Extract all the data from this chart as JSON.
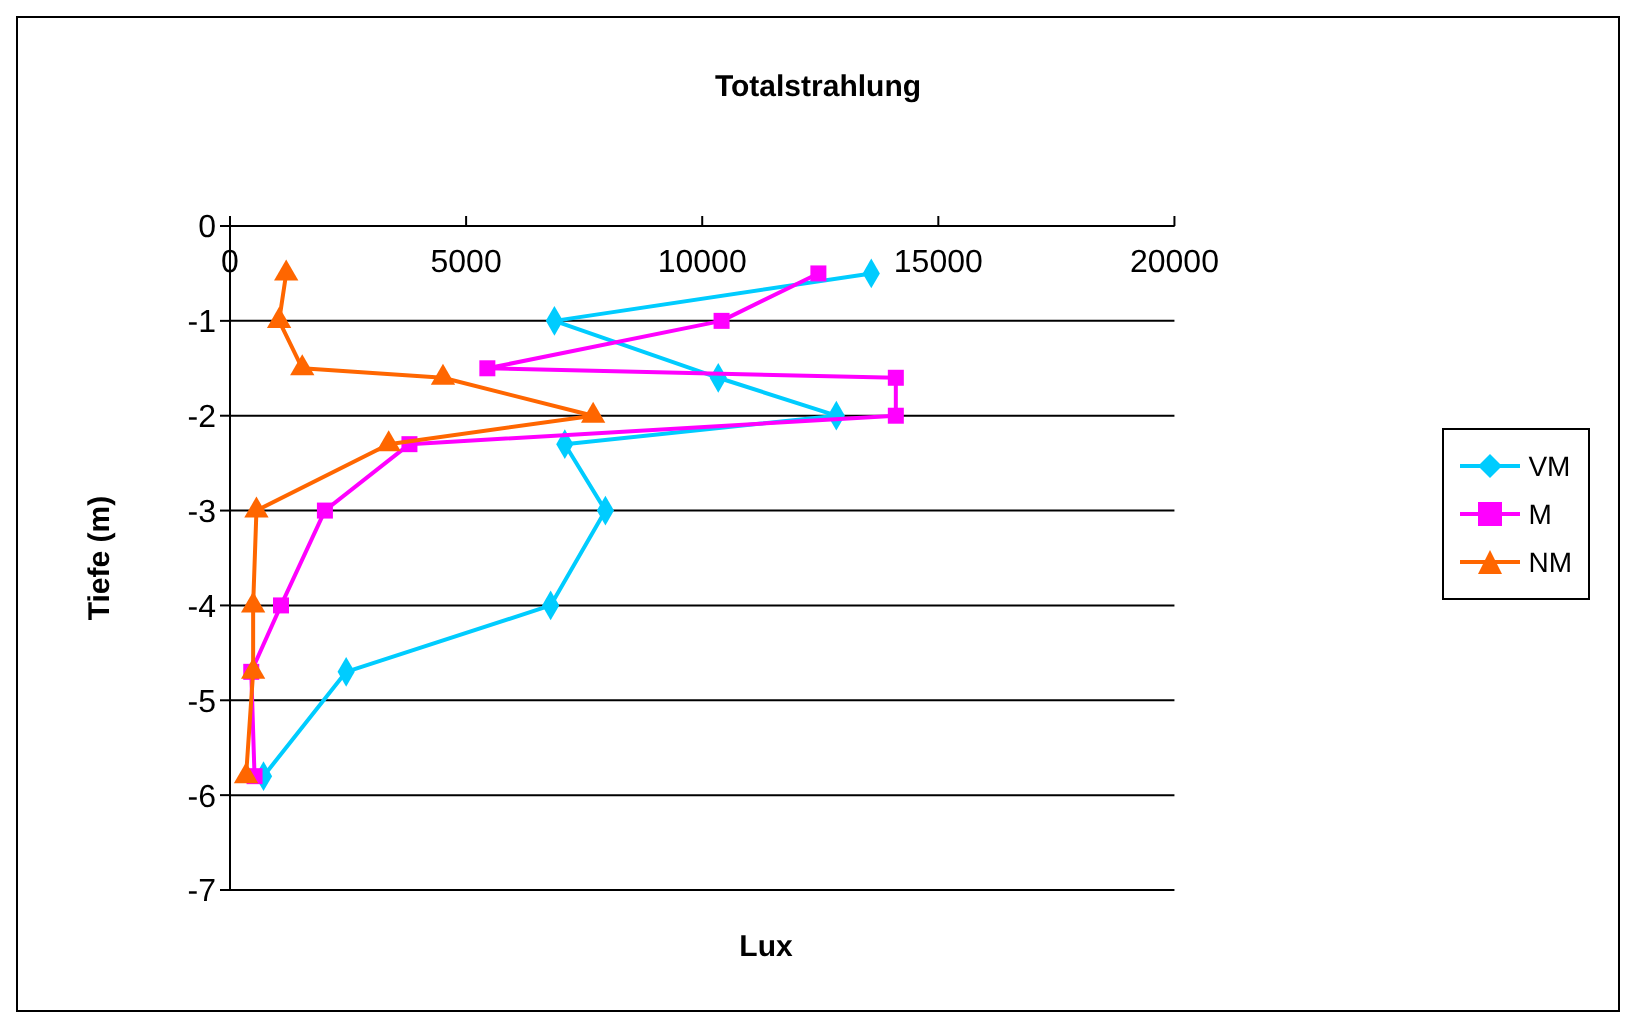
{
  "chart_data": {
    "type": "line",
    "title": "Totalstrahlung",
    "xlabel": "Lux",
    "ylabel": "Tiefe (m)",
    "xlim": [
      0,
      20000
    ],
    "xticks": [
      0,
      5000,
      10000,
      15000,
      20000
    ],
    "ylim": [
      -7,
      0
    ],
    "yticks": [
      -7,
      -6,
      -5,
      -4,
      -3,
      -2,
      -1,
      0
    ],
    "grid": "y",
    "legend": "right",
    "line_style": "solid",
    "series": [
      {
        "name": "VM",
        "color": "#00ccff",
        "marker": "diamond",
        "x": [
          13580,
          6870,
          10340,
          12840,
          7090,
          7950,
          6790,
          2460,
          710
        ],
        "values": [
          -0.5,
          -1,
          -1.6,
          -2,
          -2.3,
          -3,
          -4,
          -4.7,
          -5.8
        ]
      },
      {
        "name": "M",
        "color": "#ff00ff",
        "marker": "square",
        "x": [
          12460,
          10410,
          5450,
          14100,
          14100,
          3800,
          2010,
          1080,
          450,
          520
        ],
        "values": [
          -0.5,
          -1,
          -1.5,
          -1.6,
          -2,
          -2.3,
          -3,
          -4,
          -4.7,
          -5.8
        ]
      },
      {
        "name": "NM",
        "color": "#ff6600",
        "marker": "triangle",
        "x": [
          1190,
          1040,
          1530,
          4510,
          7690,
          3360,
          560,
          490,
          490,
          340
        ],
        "values": [
          -0.5,
          -1,
          -1.5,
          -1.6,
          -2,
          -2.3,
          -3,
          -4,
          -4.7,
          -5.8
        ]
      }
    ]
  }
}
